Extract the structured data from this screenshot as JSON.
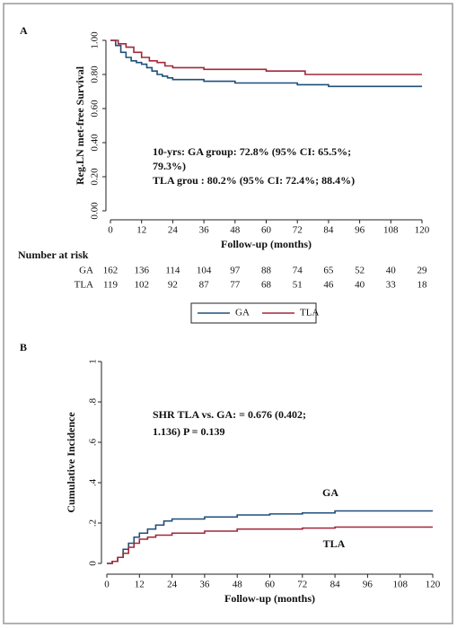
{
  "chart_data": [
    {
      "type": "line",
      "drawstyle": "steps-post",
      "panel": "A",
      "ylabel": "Reg.LN met-free Survival",
      "xlabel": "Follow-up (months)",
      "xlim": [
        0,
        120
      ],
      "xticks": [
        0,
        12,
        24,
        36,
        48,
        60,
        72,
        84,
        96,
        108,
        120
      ],
      "ylim": [
        0,
        1
      ],
      "yticks": [
        {
          "value": 0,
          "label": "0.00"
        },
        {
          "value": 0.2,
          "label": "0.20"
        },
        {
          "value": 0.4,
          "label": "0.40"
        },
        {
          "value": 0.6,
          "label": "0.60"
        },
        {
          "value": 0.8,
          "label": "0.80"
        },
        {
          "value": 1,
          "label": "1.00"
        }
      ],
      "series": [
        {
          "name": "GA",
          "color": "#1f4e79",
          "x": [
            0,
            2,
            4,
            6,
            8,
            10,
            12,
            14,
            16,
            18,
            20,
            22,
            24,
            36,
            48,
            72,
            84,
            120
          ],
          "values": [
            1,
            0.97,
            0.93,
            0.9,
            0.88,
            0.87,
            0.86,
            0.84,
            0.82,
            0.8,
            0.79,
            0.78,
            0.77,
            0.76,
            0.75,
            0.74,
            0.73,
            0.73
          ]
        },
        {
          "name": "TLA",
          "color": "#a0283a",
          "x": [
            0,
            3,
            6,
            9,
            12,
            15,
            18,
            21,
            24,
            36,
            60,
            75,
            120
          ],
          "values": [
            1,
            0.98,
            0.96,
            0.93,
            0.9,
            0.88,
            0.87,
            0.85,
            0.84,
            0.83,
            0.82,
            0.8,
            0.8
          ]
        }
      ],
      "annotation": [
        "10-yrs: GA group: 72.8% (95% CI: 65.5%;",
        "79.3%)",
        "TLA grou : 80.2% (95% CI: 72.4%; 88.4%)"
      ],
      "risk_table": {
        "title": "Number at risk",
        "rows": [
          {
            "name": "GA",
            "values": [
              162,
              136,
              114,
              104,
              97,
              88,
              74,
              65,
              52,
              40,
              29
            ]
          },
          {
            "name": "TLA",
            "values": [
              119,
              102,
              92,
              87,
              77,
              68,
              51,
              46,
              40,
              33,
              18
            ]
          }
        ]
      },
      "legend": "bottom"
    },
    {
      "type": "line",
      "drawstyle": "steps-post",
      "panel": "B",
      "ylabel": "Cumulative Incidence",
      "xlabel": "Follow-up (months)",
      "xlim": [
        0,
        120
      ],
      "xticks": [
        0,
        12,
        24,
        36,
        48,
        60,
        72,
        84,
        96,
        108,
        120
      ],
      "ylim": [
        0,
        1
      ],
      "yticks": [
        0,
        {
          "value": 0.2,
          "label": ".2"
        },
        {
          "value": 0.4,
          "label": ".4"
        },
        {
          "value": 0.6,
          "label": ".6"
        },
        {
          "value": 0.8,
          "label": ".8"
        },
        1
      ],
      "series": [
        {
          "name": "GA",
          "color": "#1f4e79",
          "x": [
            0,
            2,
            4,
            6,
            8,
            10,
            12,
            15,
            18,
            21,
            24,
            36,
            48,
            60,
            72,
            84,
            120
          ],
          "values": [
            0,
            0.01,
            0.03,
            0.07,
            0.1,
            0.13,
            0.15,
            0.17,
            0.19,
            0.21,
            0.22,
            0.23,
            0.24,
            0.245,
            0.25,
            0.26,
            0.26
          ]
        },
        {
          "name": "TLA",
          "color": "#a0283a",
          "x": [
            0,
            2,
            4,
            6,
            8,
            10,
            12,
            15,
            18,
            24,
            36,
            48,
            72,
            84,
            120
          ],
          "values": [
            0,
            0.01,
            0.03,
            0.05,
            0.08,
            0.1,
            0.12,
            0.13,
            0.14,
            0.15,
            0.16,
            0.17,
            0.175,
            0.18,
            0.18
          ]
        }
      ],
      "annotation": [
        "SHR TLA vs. GA:  =  0.676 (0.402;",
        "1.136) P = 0.139"
      ]
    }
  ]
}
